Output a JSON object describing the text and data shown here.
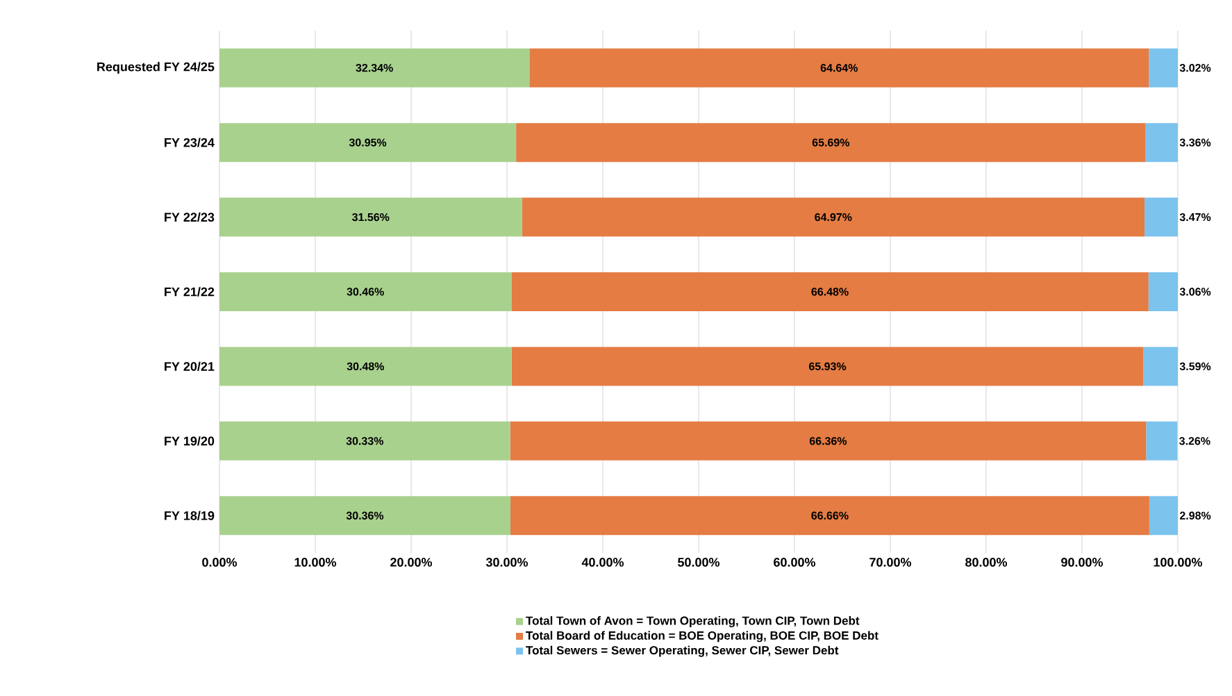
{
  "chart_data": {
    "type": "bar",
    "orientation": "horizontal",
    "stacked": true,
    "categories": [
      "Requested FY 24/25",
      "FY 23/24",
      "FY 22/23",
      "FY 21/22",
      "FY 20/21",
      "FY 19/20",
      "FY 18/19"
    ],
    "series": [
      {
        "name": "Total Town of Avon = Town Operating, Town CIP, Town Debt",
        "color": "#a9d18e",
        "values": [
          32.34,
          30.95,
          31.56,
          30.46,
          30.48,
          30.33,
          30.36
        ],
        "value_labels": [
          "32.34%",
          "30.95%",
          "31.56%",
          "30.46%",
          "30.48%",
          "30.33%",
          "30.36%"
        ]
      },
      {
        "name": "Total Board of Education = BOE Operating, BOE CIP, BOE Debt",
        "color": "#e47c43",
        "values": [
          64.64,
          65.69,
          64.97,
          66.48,
          65.93,
          66.36,
          66.66
        ],
        "value_labels": [
          "64.64%",
          "65.69%",
          "64.97%",
          "66.48%",
          "65.93%",
          "66.36%",
          "66.66%"
        ]
      },
      {
        "name": "Total Sewers = Sewer Operating, Sewer CIP, Sewer Debt",
        "color": "#7cc3ee",
        "values": [
          3.02,
          3.36,
          3.47,
          3.06,
          3.59,
          3.26,
          2.98
        ],
        "value_labels": [
          "3.02%",
          "3.36%",
          "3.47%",
          "3.06%",
          "3.59%",
          "3.26%",
          "2.98%"
        ]
      }
    ],
    "xlim": [
      0,
      100
    ],
    "xticks": [
      {
        "value": 0,
        "label": "0.00%"
      },
      {
        "value": 10,
        "label": "10.00%"
      },
      {
        "value": 20,
        "label": "20.00%"
      },
      {
        "value": 30,
        "label": "30.00%"
      },
      {
        "value": 40,
        "label": "40.00%"
      },
      {
        "value": 50,
        "label": "50.00%"
      },
      {
        "value": 60,
        "label": "60.00%"
      },
      {
        "value": 70,
        "label": "70.00%"
      },
      {
        "value": 80,
        "label": "80.00%"
      },
      {
        "value": 90,
        "label": "90.00%"
      },
      {
        "value": 100,
        "label": "100.00%"
      }
    ],
    "grid": "x",
    "legend": "bottom"
  }
}
